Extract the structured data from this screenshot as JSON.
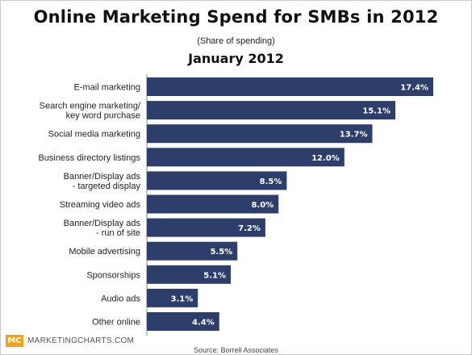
{
  "chart_data": {
    "type": "bar",
    "orientation": "horizontal",
    "title": "Online Marketing Spend for SMBs in 2012",
    "subtitle": "(Share of spending)",
    "date_label": "January 2012",
    "categories": [
      [
        "E-mail marketing"
      ],
      [
        "Search engine marketing/",
        "key word purchase"
      ],
      [
        "Social media marketing"
      ],
      [
        "Business directory listings"
      ],
      [
        "Banner/Display ads",
        "- targeted display"
      ],
      [
        "Streaming video ads"
      ],
      [
        "Banner/Display ads",
        "- run of site"
      ],
      [
        "Mobile advertising"
      ],
      [
        "Sponsorships"
      ],
      [
        "Audio ads"
      ],
      [
        "Other online"
      ]
    ],
    "values": [
      17.4,
      15.1,
      13.7,
      12.0,
      8.5,
      8.0,
      7.2,
      5.5,
      5.1,
      3.1,
      4.4
    ],
    "value_labels": [
      "17.4%",
      "15.1%",
      "13.7%",
      "12.0%",
      "8.5%",
      "8.0%",
      "7.2%",
      "5.5%",
      "5.1%",
      "3.1%",
      "4.4%"
    ],
    "xlim": [
      0,
      20
    ],
    "grid": false,
    "bar_color": "#2d3e6b"
  },
  "footer": {
    "logo_text": "MC",
    "brand": "MARKETINGCHARTS.COM",
    "source": "Source: Borrell Associates"
  },
  "colors": {
    "logo_bg": "#f2a21a",
    "bar": "#2d3e6b"
  }
}
